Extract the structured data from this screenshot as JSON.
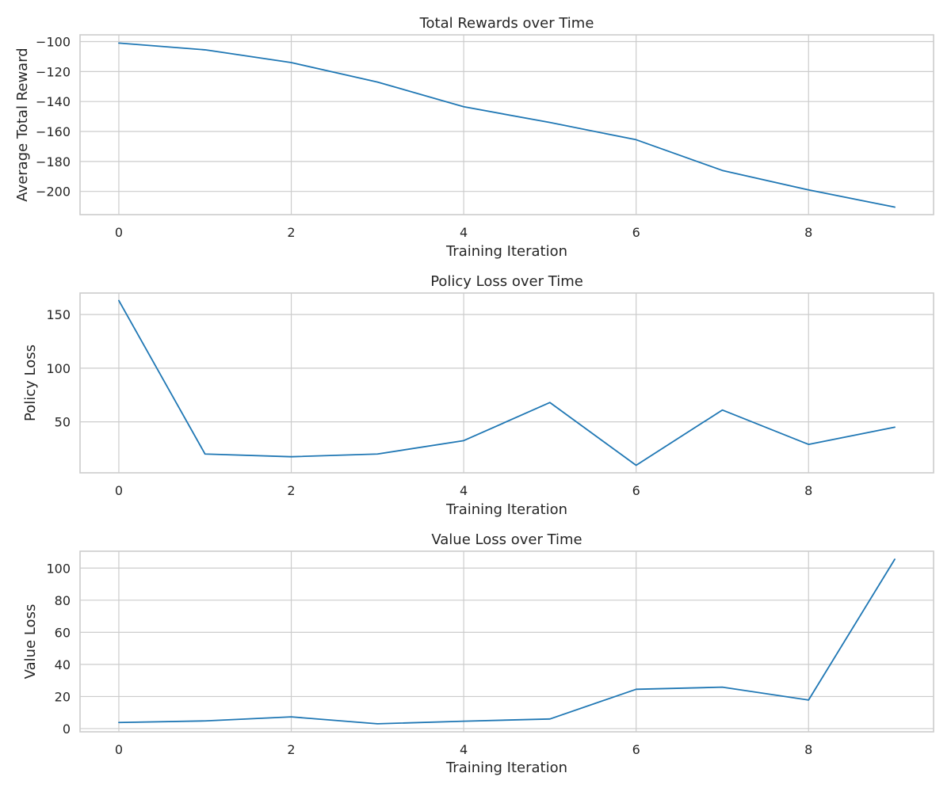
{
  "chart_data": [
    {
      "type": "line",
      "title": "Total Rewards over Time",
      "xlabel": "Training Iteration",
      "ylabel": "Average Total Reward",
      "xlim": [
        -0.45,
        9.45
      ],
      "ylim": [
        -215.5,
        -95.5
      ],
      "xticks": [
        0,
        2,
        4,
        6,
        8
      ],
      "yticks": [
        -100,
        -120,
        -140,
        -160,
        -180,
        -200
      ],
      "yticklabels": [
        "−100",
        "−120",
        "−140",
        "−160",
        "−180",
        "−200"
      ],
      "grid": true,
      "color": "#1f77b4",
      "x": [
        0,
        1,
        2,
        3,
        4,
        5,
        6,
        7,
        8,
        9
      ],
      "y": [
        -101,
        -105.5,
        -114,
        -127,
        -143.5,
        -154,
        -165.5,
        -186,
        -199,
        -210.5
      ]
    },
    {
      "type": "line",
      "title": "Policy Loss over Time",
      "xlabel": "Training Iteration",
      "ylabel": "Policy Loss",
      "xlim": [
        -0.45,
        9.45
      ],
      "ylim": [
        2.5,
        170
      ],
      "xticks": [
        0,
        2,
        4,
        6,
        8
      ],
      "yticks": [
        50,
        100,
        150
      ],
      "yticklabels": [
        "50",
        "100",
        "150"
      ],
      "grid": true,
      "color": "#1f77b4",
      "x": [
        0,
        1,
        2,
        3,
        4,
        5,
        6,
        7,
        8,
        9
      ],
      "y": [
        163,
        20,
        17.5,
        20,
        32.5,
        68,
        9.5,
        61,
        29,
        45
      ]
    },
    {
      "type": "line",
      "title": "Value Loss over Time",
      "xlabel": "Training Iteration",
      "ylabel": "Value Loss",
      "xlim": [
        -0.45,
        9.45
      ],
      "ylim": [
        -2,
        110.5
      ],
      "xticks": [
        0,
        2,
        4,
        6,
        8
      ],
      "yticks": [
        0,
        20,
        40,
        60,
        80,
        100
      ],
      "yticklabels": [
        "0",
        "20",
        "40",
        "60",
        "80",
        "100"
      ],
      "grid": true,
      "color": "#1f77b4",
      "x": [
        0,
        1,
        2,
        3,
        4,
        5,
        6,
        7,
        8,
        9
      ],
      "y": [
        3.8,
        4.8,
        7.3,
        3,
        4.6,
        6,
        24.5,
        25.8,
        17.8,
        105.5
      ]
    }
  ]
}
